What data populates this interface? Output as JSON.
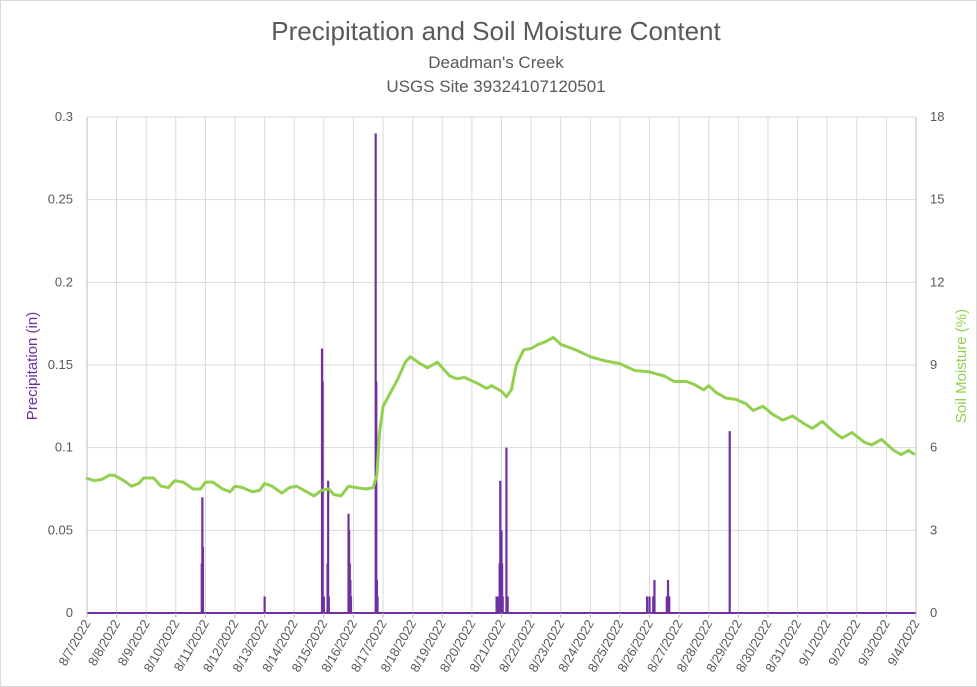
{
  "chart_data": {
    "type": "line",
    "title": "Precipitation and Soil Moisture Content",
    "subtitle_lines": [
      "Deadman's Creek",
      "USGS Site 39324107120501"
    ],
    "ylabel_left": "Precipitation (in)",
    "ylabel_right": "Soil Moisture (%)",
    "ylim_left": [
      0,
      0.3
    ],
    "ylim_right": [
      0,
      18
    ],
    "yticks_left": [
      "0",
      "0.05",
      "0.1",
      "0.15",
      "0.2",
      "0.25",
      "0.3"
    ],
    "yticks_right": [
      "0",
      "3",
      "6",
      "9",
      "12",
      "15",
      "18"
    ],
    "x_tick_labels": [
      "8/7/2022",
      "8/8/2022",
      "8/9/2022",
      "8/10/2022",
      "8/11/2022",
      "8/12/2022",
      "8/13/2022",
      "8/14/2022",
      "8/15/2022",
      "8/16/2022",
      "8/17/2022",
      "8/18/2022",
      "8/19/2022",
      "8/20/2022",
      "8/21/2022",
      "8/22/2022",
      "8/23/2022",
      "8/24/2022",
      "8/25/2022",
      "8/26/2022",
      "8/27/2022",
      "8/28/2022",
      "8/29/2022",
      "8/30/2022",
      "8/31/2022",
      "9/1/2022",
      "9/2/2022",
      "9/3/2022",
      "9/4/2022"
    ],
    "grid": true,
    "legend": "none",
    "colors": {
      "precipitation": "#7030a0",
      "soil_moisture": "#92d050",
      "grid": "#d9d9d9",
      "text": "#595959"
    },
    "series": [
      {
        "axis": "left",
        "type": "bar-spikes",
        "points": [
          [
            "8/10/2022 21:00",
            0.03
          ],
          [
            "8/10/2022 21:30",
            0.07
          ],
          [
            "8/10/2022 22:00",
            0.04
          ],
          [
            "8/13/2022 00:00",
            0.01
          ],
          [
            "8/14/2022 22:30",
            0.16
          ],
          [
            "8/14/2022 23:00",
            0.14
          ],
          [
            "8/15/2022 00:00",
            0.01
          ],
          [
            "8/15/2022 03:00",
            0.03
          ],
          [
            "8/15/2022 03:30",
            0.08
          ],
          [
            "8/15/2022 04:00",
            0.01
          ],
          [
            "8/15/2022 20:00",
            0.06
          ],
          [
            "8/15/2022 20:30",
            0.05
          ],
          [
            "8/15/2022 21:00",
            0.03
          ],
          [
            "8/15/2022 21:30",
            0.02
          ],
          [
            "8/15/2022 22:00",
            0.01
          ],
          [
            "8/16/2022 18:00",
            0.29
          ],
          [
            "8/16/2022 18:30",
            0.14
          ],
          [
            "8/16/2022 19:00",
            0.02
          ],
          [
            "8/16/2022 19:30",
            0.01
          ],
          [
            "8/20/2022 20:00",
            0.01
          ],
          [
            "8/20/2022 21:00",
            0.01
          ],
          [
            "8/20/2022 22:30",
            0.03
          ],
          [
            "8/20/2022 23:00",
            0.08
          ],
          [
            "8/20/2022 23:30",
            0.04
          ],
          [
            "8/21/2022 00:00",
            0.05
          ],
          [
            "8/21/2022 00:30",
            0.03
          ],
          [
            "8/21/2022 01:00",
            0.01
          ],
          [
            "8/21/2022 04:00",
            0.1
          ],
          [
            "8/21/2022 05:00",
            0.01
          ],
          [
            "8/25/2022 22:00",
            0.01
          ],
          [
            "8/26/2022 00:00",
            0.01
          ],
          [
            "8/26/2022 03:00",
            0.01
          ],
          [
            "8/26/2022 04:00",
            0.02
          ],
          [
            "8/26/2022 14:00",
            0.01
          ],
          [
            "8/26/2022 15:00",
            0.02
          ],
          [
            "8/26/2022 16:00",
            0.01
          ],
          [
            "8/28/2022 17:00",
            0.11
          ]
        ]
      },
      {
        "axis": "right",
        "type": "line",
        "points": [
          [
            "8/6/2022 23:00",
            4.9
          ],
          [
            "8/7/2022 06:00",
            4.8
          ],
          [
            "8/7/2022 12:00",
            4.85
          ],
          [
            "8/7/2022 18:00",
            5.0
          ],
          [
            "8/7/2022 22:00",
            5.0
          ],
          [
            "8/8/2022 06:00",
            4.8
          ],
          [
            "8/8/2022 12:00",
            4.6
          ],
          [
            "8/8/2022 18:00",
            4.7
          ],
          [
            "8/8/2022 22:00",
            4.9
          ],
          [
            "8/9/2022 06:00",
            4.9
          ],
          [
            "8/9/2022 12:00",
            4.6
          ],
          [
            "8/9/2022 18:00",
            4.55
          ],
          [
            "8/9/2022 23:00",
            4.8
          ],
          [
            "8/10/2022 06:00",
            4.75
          ],
          [
            "8/10/2022 14:00",
            4.5
          ],
          [
            "8/10/2022 20:00",
            4.5
          ],
          [
            "8/11/2022 00:00",
            4.75
          ],
          [
            "8/11/2022 06:00",
            4.75
          ],
          [
            "8/11/2022 14:00",
            4.5
          ],
          [
            "8/11/2022 20:00",
            4.4
          ],
          [
            "8/12/2022 00:00",
            4.6
          ],
          [
            "8/12/2022 06:00",
            4.55
          ],
          [
            "8/12/2022 14:00",
            4.4
          ],
          [
            "8/12/2022 20:00",
            4.45
          ],
          [
            "8/13/2022 00:00",
            4.7
          ],
          [
            "8/13/2022 06:00",
            4.6
          ],
          [
            "8/13/2022 14:00",
            4.35
          ],
          [
            "8/13/2022 20:00",
            4.55
          ],
          [
            "8/14/2022 02:00",
            4.6
          ],
          [
            "8/14/2022 10:00",
            4.4
          ],
          [
            "8/14/2022 16:00",
            4.25
          ],
          [
            "8/14/2022 22:00",
            4.45
          ],
          [
            "8/15/2022 04:00",
            4.5
          ],
          [
            "8/15/2022 08:00",
            4.3
          ],
          [
            "8/15/2022 14:00",
            4.25
          ],
          [
            "8/15/2022 20:00",
            4.6
          ],
          [
            "8/16/2022 02:00",
            4.55
          ],
          [
            "8/16/2022 10:00",
            4.5
          ],
          [
            "8/16/2022 16:00",
            4.55
          ],
          [
            "8/16/2022 19:00",
            5.0
          ],
          [
            "8/16/2022 21:00",
            6.5
          ],
          [
            "8/17/2022 00:00",
            7.5
          ],
          [
            "8/17/2022 06:00",
            8.0
          ],
          [
            "8/17/2022 12:00",
            8.5
          ],
          [
            "8/17/2022 18:00",
            9.1
          ],
          [
            "8/17/2022 22:00",
            9.3
          ],
          [
            "8/18/2022 06:00",
            9.05
          ],
          [
            "8/18/2022 12:00",
            8.9
          ],
          [
            "8/18/2022 20:00",
            9.1
          ],
          [
            "8/19/2022 06:00",
            8.6
          ],
          [
            "8/19/2022 12:00",
            8.5
          ],
          [
            "8/19/2022 18:00",
            8.55
          ],
          [
            "8/20/2022 06:00",
            8.3
          ],
          [
            "8/20/2022 12:00",
            8.15
          ],
          [
            "8/20/2022 16:00",
            8.25
          ],
          [
            "8/21/2022 00:00",
            8.05
          ],
          [
            "8/21/2022 04:00",
            7.85
          ],
          [
            "8/21/2022 08:00",
            8.1
          ],
          [
            "8/21/2022 12:00",
            9.0
          ],
          [
            "8/21/2022 18:00",
            9.55
          ],
          [
            "8/22/2022 00:00",
            9.6
          ],
          [
            "8/22/2022 06:00",
            9.75
          ],
          [
            "8/22/2022 12:00",
            9.85
          ],
          [
            "8/22/2022 18:00",
            10.0
          ],
          [
            "8/23/2022 00:00",
            9.75
          ],
          [
            "8/23/2022 12:00",
            9.55
          ],
          [
            "8/24/2022 00:00",
            9.3
          ],
          [
            "8/24/2022 12:00",
            9.15
          ],
          [
            "8/25/2022 00:00",
            9.05
          ],
          [
            "8/25/2022 12:00",
            8.8
          ],
          [
            "8/26/2022 00:00",
            8.75
          ],
          [
            "8/26/2022 12:00",
            8.6
          ],
          [
            "8/26/2022 20:00",
            8.4
          ],
          [
            "8/27/2022 06:00",
            8.4
          ],
          [
            "8/27/2022 12:00",
            8.3
          ],
          [
            "8/27/2022 20:00",
            8.1
          ],
          [
            "8/28/2022 00:00",
            8.25
          ],
          [
            "8/28/2022 06:00",
            8.0
          ],
          [
            "8/28/2022 14:00",
            7.8
          ],
          [
            "8/28/2022 22:00",
            7.75
          ],
          [
            "8/29/2022 06:00",
            7.6
          ],
          [
            "8/29/2022 12:00",
            7.35
          ],
          [
            "8/29/2022 20:00",
            7.5
          ],
          [
            "8/30/2022 04:00",
            7.2
          ],
          [
            "8/30/2022 12:00",
            7.0
          ],
          [
            "8/30/2022 20:00",
            7.15
          ],
          [
            "8/31/2022 06:00",
            6.85
          ],
          [
            "8/31/2022 12:00",
            6.7
          ],
          [
            "8/31/2022 20:00",
            6.95
          ],
          [
            "9/1/2022 06:00",
            6.55
          ],
          [
            "9/1/2022 12:00",
            6.35
          ],
          [
            "9/1/2022 20:00",
            6.55
          ],
          [
            "9/2/2022 06:00",
            6.2
          ],
          [
            "9/2/2022 12:00",
            6.1
          ],
          [
            "9/2/2022 20:00",
            6.3
          ],
          [
            "9/3/2022 06:00",
            5.9
          ],
          [
            "9/3/2022 12:00",
            5.75
          ],
          [
            "9/3/2022 18:00",
            5.9
          ],
          [
            "9/3/2022 23:00",
            5.75
          ]
        ]
      }
    ]
  }
}
